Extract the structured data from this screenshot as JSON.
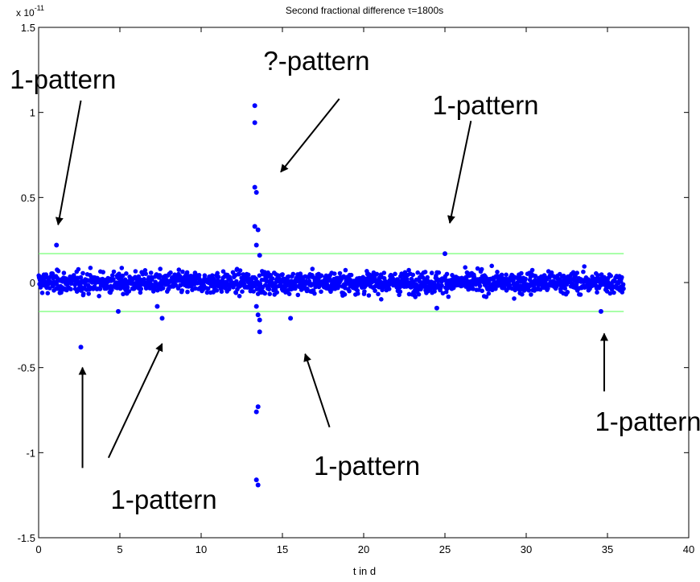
{
  "chart_data": {
    "type": "scatter",
    "title": "Second fractional difference τ=1800s",
    "xlabel": "t in d",
    "ylabel": "",
    "y_exponent_base": "x 10",
    "y_exponent_power": "-11",
    "xlim": [
      0,
      40
    ],
    "ylim": [
      -1.5,
      1.5
    ],
    "xticks": [
      0,
      5,
      10,
      15,
      20,
      25,
      30,
      35,
      40
    ],
    "yticks": [
      -1.5,
      -1,
      -0.5,
      0,
      0.5,
      1,
      1.5
    ],
    "xtick_labels": [
      "0",
      "5",
      "10",
      "15",
      "20",
      "25",
      "30",
      "35",
      "40"
    ],
    "ytick_labels": [
      "-1.5",
      "-1",
      "-0.5",
      "0",
      "0.5",
      "1",
      "1.5"
    ],
    "grid": false,
    "marker_color": "#0000ff",
    "threshold_color": "#66ff66",
    "thresholds": [
      0.17,
      -0.17
    ],
    "noise_band": {
      "x_range": [
        0,
        36
      ],
      "amplitude": 0.11
    },
    "outliers": [
      {
        "x": 1.1,
        "y": 0.22
      },
      {
        "x": 2.6,
        "y": -0.38
      },
      {
        "x": 4.9,
        "y": -0.17
      },
      {
        "x": 7.3,
        "y": -0.14
      },
      {
        "x": 7.6,
        "y": -0.21
      },
      {
        "x": 13.3,
        "y": 1.04
      },
      {
        "x": 13.3,
        "y": 0.94
      },
      {
        "x": 13.3,
        "y": 0.56
      },
      {
        "x": 13.4,
        "y": 0.53
      },
      {
        "x": 13.3,
        "y": 0.33
      },
      {
        "x": 13.5,
        "y": 0.31
      },
      {
        "x": 13.4,
        "y": 0.22
      },
      {
        "x": 13.6,
        "y": 0.16
      },
      {
        "x": 13.4,
        "y": -0.14
      },
      {
        "x": 13.5,
        "y": -0.19
      },
      {
        "x": 13.6,
        "y": -0.22
      },
      {
        "x": 13.6,
        "y": -0.29
      },
      {
        "x": 13.5,
        "y": -0.73
      },
      {
        "x": 13.4,
        "y": -0.76
      },
      {
        "x": 13.4,
        "y": -1.16
      },
      {
        "x": 13.5,
        "y": -1.19
      },
      {
        "x": 15.5,
        "y": -0.21
      },
      {
        "x": 24.5,
        "y": -0.15
      },
      {
        "x": 25.0,
        "y": 0.17
      },
      {
        "x": 34.6,
        "y": -0.17
      }
    ],
    "annotations": [
      {
        "text": "1-pattern",
        "text_x": 1.5,
        "text_y": 1.14,
        "arrow_from": [
          2.6,
          1.07
        ],
        "arrow_to": [
          1.2,
          0.34
        ]
      },
      {
        "text": "?-pattern",
        "text_x": 17.1,
        "text_y": 1.25,
        "arrow_from": [
          18.5,
          1.08
        ],
        "arrow_to": [
          14.9,
          0.65
        ]
      },
      {
        "text": "1-pattern",
        "text_x": 27.5,
        "text_y": 0.99,
        "arrow_from": [
          26.6,
          0.95
        ],
        "arrow_to": [
          25.3,
          0.35
        ]
      },
      {
        "text": "1-pattern",
        "text_x": 7.7,
        "text_y": -1.33,
        "arrow_from": [
          2.7,
          -1.09
        ],
        "arrow_to": [
          2.7,
          -0.5
        ]
      },
      {
        "text": "1-pattern",
        "text_x": 7.7,
        "text_y": -1.33,
        "arrow_from": [
          4.3,
          -1.03
        ],
        "arrow_to": [
          7.6,
          -0.36
        ]
      },
      {
        "text": "1-pattern",
        "text_x": 20.2,
        "text_y": -1.13,
        "arrow_from": [
          17.9,
          -0.85
        ],
        "arrow_to": [
          16.4,
          -0.42
        ]
      },
      {
        "text": "1-pattern",
        "text_x": 37.5,
        "text_y": -0.87,
        "arrow_from": [
          34.8,
          -0.64
        ],
        "arrow_to": [
          34.8,
          -0.3
        ]
      }
    ]
  }
}
